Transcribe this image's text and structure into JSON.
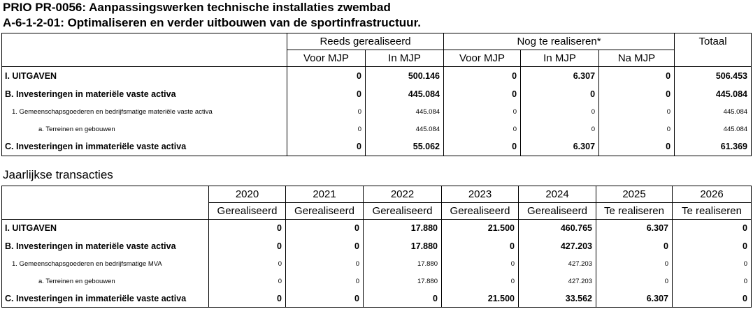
{
  "title_line1": "PRIO PR-0056: Aanpassingswerken technische installaties zwembad",
  "title_line2": "A-6-1-2-01: Optimaliseren en verder uitbouwen van de sportinfrastructuur.",
  "table1": {
    "groups": [
      "Reeds gerealiseerd",
      "Nog te realiseren*",
      "Totaal"
    ],
    "subheaders": [
      "Voor MJP",
      "In MJP",
      "Voor MJP",
      "In MJP",
      "Na MJP"
    ],
    "rows": [
      {
        "label": "I. UITGAVEN",
        "values": [
          "0",
          "500.146",
          "0",
          "6.307",
          "0",
          "506.453"
        ]
      },
      {
        "label": "B. Investeringen in materiële vaste activa",
        "values": [
          "0",
          "445.084",
          "0",
          "0",
          "0",
          "445.084"
        ]
      },
      {
        "label": "1. Gemeenschapsgoederen en bedrijfsmatige materiële vaste activa",
        "values": [
          "0",
          "445.084",
          "0",
          "0",
          "0",
          "445.084"
        ]
      },
      {
        "label": "a. Terreinen en gebouwen",
        "values": [
          "0",
          "445.084",
          "0",
          "0",
          "0",
          "445.084"
        ]
      },
      {
        "label": "C. Investeringen in immateriële vaste activa",
        "values": [
          "0",
          "55.062",
          "0",
          "6.307",
          "0",
          "61.369"
        ]
      }
    ]
  },
  "section2_title": "Jaarlijkse transacties",
  "table2": {
    "years": [
      "2020",
      "2021",
      "2022",
      "2023",
      "2024",
      "2025",
      "2026"
    ],
    "statuses": [
      "Gerealiseerd",
      "Gerealiseerd",
      "Gerealiseerd",
      "Gerealiseerd",
      "Gerealiseerd",
      "Te realiseren",
      "Te realiseren"
    ],
    "rows": [
      {
        "label": "I. UITGAVEN",
        "values": [
          "0",
          "0",
          "17.880",
          "21.500",
          "460.765",
          "6.307",
          "0"
        ]
      },
      {
        "label": "B. Investeringen in materiële vaste activa",
        "values": [
          "0",
          "0",
          "17.880",
          "0",
          "427.203",
          "0",
          "0"
        ]
      },
      {
        "label": "1. Gemeenschapsgoederen en bedrijfsmatige MVA",
        "values": [
          "0",
          "0",
          "17.880",
          "0",
          "427.203",
          "0",
          "0"
        ]
      },
      {
        "label": "a. Terreinen en gebouwen",
        "values": [
          "0",
          "0",
          "17.880",
          "0",
          "427.203",
          "0",
          "0"
        ]
      },
      {
        "label": "C. Investeringen in immateriële vaste activa",
        "values": [
          "0",
          "0",
          "0",
          "21.500",
          "33.562",
          "6.307",
          "0"
        ]
      }
    ]
  }
}
